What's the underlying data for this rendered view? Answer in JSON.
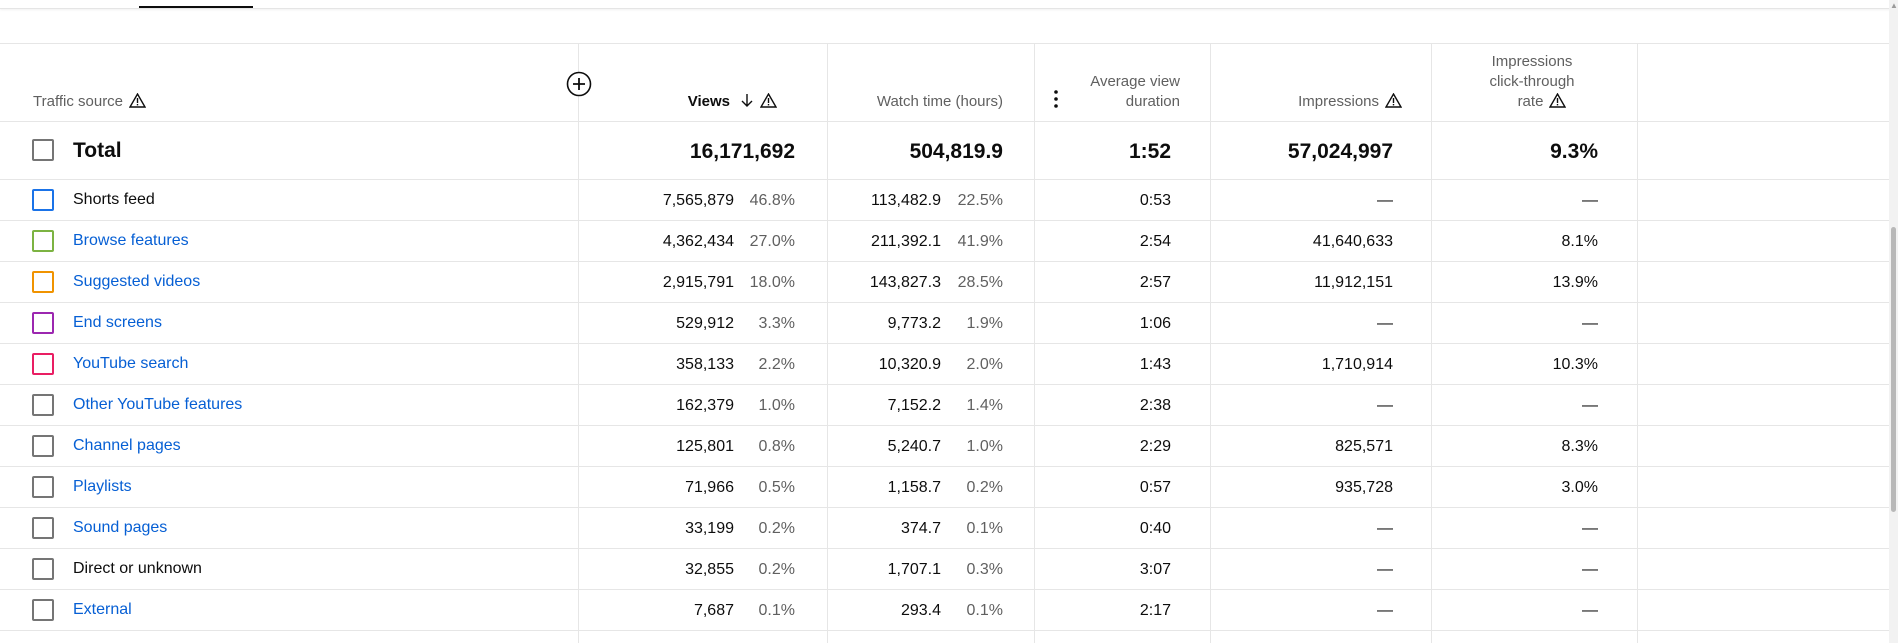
{
  "header": {
    "traffic_source": "Traffic source",
    "views": "Views",
    "watch_time": "Watch time (hours)",
    "avg_view_duration_line1": "Average view",
    "avg_view_duration_line2": "duration",
    "impressions": "Impressions",
    "ctr_line1": "Impressions",
    "ctr_line2": "click-through",
    "ctr_line3": "rate"
  },
  "total": {
    "label": "Total",
    "views": "16,171,692",
    "watch_time": "504,819.9",
    "avg_duration": "1:52",
    "impressions": "57,024,997",
    "ctr": "9.3%"
  },
  "rows": [
    {
      "label": "Shorts feed",
      "color": "#1a73e8",
      "link": false,
      "views": "7,565,879",
      "views_pct": "46.8%",
      "watch": "113,482.9",
      "watch_pct": "22.5%",
      "duration": "0:53",
      "impressions": "—",
      "ctr": "—"
    },
    {
      "label": "Browse features",
      "color": "#7cb342",
      "link": true,
      "views": "4,362,434",
      "views_pct": "27.0%",
      "watch": "211,392.1",
      "watch_pct": "41.9%",
      "duration": "2:54",
      "impressions": "41,640,633",
      "ctr": "8.1%"
    },
    {
      "label": "Suggested videos",
      "color": "#f09300",
      "link": true,
      "views": "2,915,791",
      "views_pct": "18.0%",
      "watch": "143,827.3",
      "watch_pct": "28.5%",
      "duration": "2:57",
      "impressions": "11,912,151",
      "ctr": "13.9%"
    },
    {
      "label": "End screens",
      "color": "#9c27b0",
      "link": true,
      "views": "529,912",
      "views_pct": "3.3%",
      "watch": "9,773.2",
      "watch_pct": "1.9%",
      "duration": "1:06",
      "impressions": "—",
      "ctr": "—"
    },
    {
      "label": "YouTube search",
      "color": "#e91e63",
      "link": true,
      "views": "358,133",
      "views_pct": "2.2%",
      "watch": "10,320.9",
      "watch_pct": "2.0%",
      "duration": "1:43",
      "impressions": "1,710,914",
      "ctr": "10.3%"
    },
    {
      "label": "Other YouTube features",
      "color": "#757575",
      "link": true,
      "views": "162,379",
      "views_pct": "1.0%",
      "watch": "7,152.2",
      "watch_pct": "1.4%",
      "duration": "2:38",
      "impressions": "—",
      "ctr": "—"
    },
    {
      "label": "Channel pages",
      "color": "#757575",
      "link": true,
      "views": "125,801",
      "views_pct": "0.8%",
      "watch": "5,240.7",
      "watch_pct": "1.0%",
      "duration": "2:29",
      "impressions": "825,571",
      "ctr": "8.3%"
    },
    {
      "label": "Playlists",
      "color": "#757575",
      "link": true,
      "views": "71,966",
      "views_pct": "0.5%",
      "watch": "1,158.7",
      "watch_pct": "0.2%",
      "duration": "0:57",
      "impressions": "935,728",
      "ctr": "3.0%"
    },
    {
      "label": "Sound pages",
      "color": "#757575",
      "link": true,
      "views": "33,199",
      "views_pct": "0.2%",
      "watch": "374.7",
      "watch_pct": "0.1%",
      "duration": "0:40",
      "impressions": "—",
      "ctr": "—"
    },
    {
      "label": "Direct or unknown",
      "color": "#757575",
      "link": false,
      "views": "32,855",
      "views_pct": "0.2%",
      "watch": "1,707.1",
      "watch_pct": "0.3%",
      "duration": "3:07",
      "impressions": "—",
      "ctr": "—"
    },
    {
      "label": "External",
      "color": "#757575",
      "link": true,
      "views": "7,687",
      "views_pct": "0.1%",
      "watch": "293.4",
      "watch_pct": "0.1%",
      "duration": "2:17",
      "impressions": "—",
      "ctr": "—"
    }
  ],
  "colors": {
    "link": "#065fd4",
    "muted": "#606060",
    "text": "#0d0d0d",
    "divider": "#e6e6e6"
  },
  "icons": [
    "warning-icon",
    "sort-down-arrow-icon",
    "add-column-icon",
    "more-vert-icon"
  ]
}
